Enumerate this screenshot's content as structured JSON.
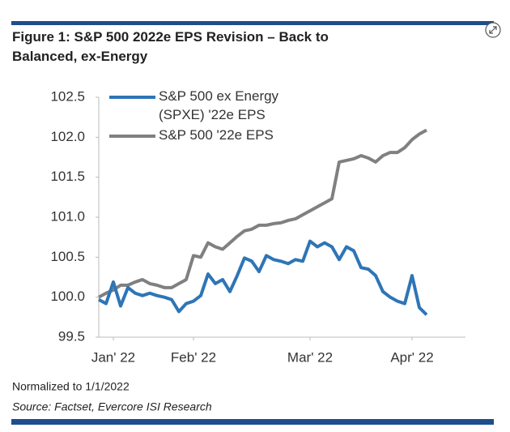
{
  "chart_data": {
    "type": "line",
    "title": "Figure 1: S&P 500 2022e EPS Revision – Back to Balanced, ex-Energy",
    "note": "Normalized to 1/1/2022",
    "source": "Source: Factset, Evercore ISI Research",
    "categories": [
      null,
      null,
      "Jan' 22",
      null,
      null,
      null,
      null,
      null,
      null,
      null,
      null,
      null,
      null,
      "Feb' 22",
      null,
      null,
      null,
      null,
      null,
      null,
      null,
      null,
      null,
      null,
      null,
      null,
      null,
      null,
      null,
      "Mar' 22",
      null,
      null,
      null,
      null,
      null,
      null,
      null,
      null,
      null,
      null,
      null,
      null,
      null,
      "Apr' 22",
      null,
      null
    ],
    "series": [
      {
        "name": "S&P 500 ex Energy (SPXE) '22e EPS",
        "color": "#2e75b6",
        "values": [
          99.97,
          99.92,
          100.19,
          99.89,
          100.12,
          100.05,
          100.02,
          100.05,
          100.02,
          100.0,
          99.97,
          99.82,
          99.92,
          99.95,
          100.02,
          100.29,
          100.17,
          100.22,
          100.07,
          100.27,
          100.49,
          100.45,
          100.32,
          100.52,
          100.47,
          100.45,
          100.42,
          100.47,
          100.45,
          100.7,
          100.63,
          100.68,
          100.63,
          100.47,
          100.63,
          100.58,
          100.37,
          100.35,
          100.27,
          100.07,
          100.0,
          99.95,
          99.92,
          100.27,
          99.87,
          99.78
        ]
      },
      {
        "name": "S&P 500 '22e EPS",
        "color": "#808080",
        "values": [
          100.0,
          100.05,
          100.09,
          100.15,
          100.15,
          100.19,
          100.22,
          100.17,
          100.15,
          100.12,
          100.12,
          100.17,
          100.22,
          100.52,
          100.5,
          100.68,
          100.63,
          100.6,
          100.68,
          100.76,
          100.83,
          100.85,
          100.9,
          100.9,
          100.92,
          100.93,
          100.96,
          100.98,
          101.03,
          101.08,
          101.13,
          101.18,
          101.23,
          101.69,
          101.71,
          101.73,
          101.77,
          101.74,
          101.69,
          101.77,
          101.81,
          101.81,
          101.87,
          101.97,
          102.04,
          102.09
        ]
      }
    ],
    "ylim": [
      99.5,
      102.5
    ],
    "yticks": [
      99.5,
      {
        "value": 100,
        "label": "100.0"
      },
      100.5,
      {
        "value": 101,
        "label": "101.0"
      },
      101.5,
      {
        "value": 102,
        "label": "102.0"
      },
      102.5
    ],
    "grid": false
  }
}
